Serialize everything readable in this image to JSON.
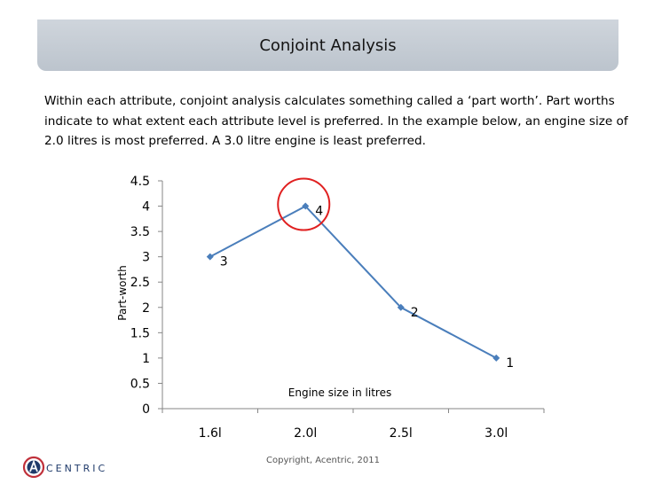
{
  "slide": {
    "title": "Conjoint Analysis",
    "intro": "Within each attribute, conjoint analysis calculates something called a ‘part worth’. Part worths indicate to what extent each attribute level is preferred. In the example below, an engine size of 2.0 litres is most preferred. A 3.0 litre engine is least preferred.",
    "copyright": "Copyright, Acentric, 2011",
    "logo_text": "CENTRIC"
  },
  "chart_data": {
    "type": "line",
    "categories": [
      "1.6l",
      "2.0l",
      "2.5l",
      "3.0l"
    ],
    "values": [
      3,
      4,
      2,
      1
    ],
    "data_labels": [
      "3",
      "4",
      "2",
      "1"
    ],
    "xlabel": "Engine size in litres",
    "ylabel": "Part-worth",
    "ylim": [
      0,
      4.5
    ],
    "yticks": [
      "0",
      "0.5",
      "1",
      "1.5",
      "2",
      "2.5",
      "3",
      "3.5",
      "4",
      "4.5"
    ],
    "line_color": "#4a7ebb",
    "highlight_color": "#e02020",
    "highlight_category": "2.0l",
    "grid": false,
    "legend": "none"
  }
}
